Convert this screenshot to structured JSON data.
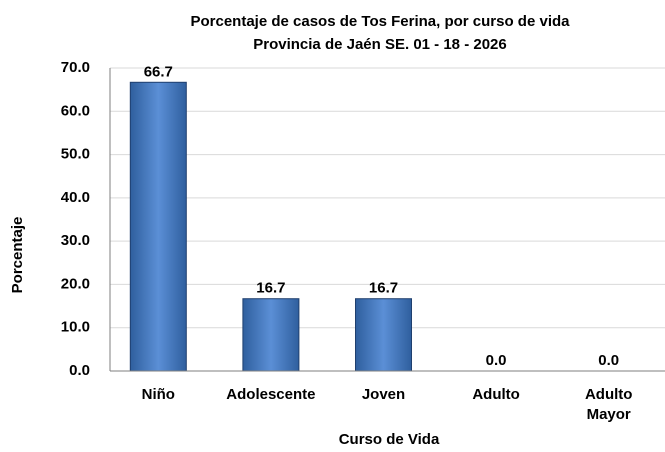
{
  "chart_data": {
    "type": "bar",
    "title": "Porcentaje de casos de Tos Ferina, por curso de vida",
    "subtitle": "Provincia de Jaén SE. 01 - 18 - 2026",
    "x_label": "Curso de Vida",
    "y_label": "Porcentaje",
    "categories": [
      "Niño",
      "Adolescente",
      "Joven",
      "Adulto",
      "Adulto Mayor"
    ],
    "values": [
      66.7,
      16.7,
      16.7,
      0,
      0
    ],
    "value_labels": [
      "66.7",
      "16.7",
      "16.7",
      "0.0",
      "0.0"
    ],
    "color": "#4f81bd",
    "ylim": [
      0,
      70
    ],
    "yticks": [
      {
        "value": 0,
        "label": "0.0"
      },
      {
        "value": 10,
        "label": "10.0"
      },
      {
        "value": 20,
        "label": "20.0"
      },
      {
        "value": 30,
        "label": "30.0"
      },
      {
        "value": 40,
        "label": "40.0"
      },
      {
        "value": 50,
        "label": "50.0"
      },
      {
        "value": 60,
        "label": "60.0"
      },
      {
        "value": 70,
        "label": "70.0"
      }
    ],
    "grid": true
  }
}
